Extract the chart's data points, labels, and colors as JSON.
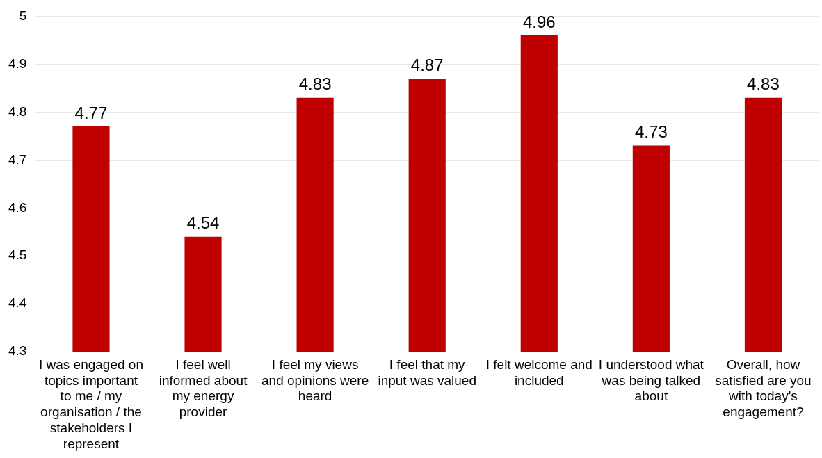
{
  "chart_data": {
    "type": "bar",
    "categories": [
      "I was engaged on topics important to me / my organisation / the stakeholders I represent",
      "I feel well informed about my energy provider",
      "I feel my views and opinions were heard",
      "I feel that my input was valued",
      "I felt welcome and included",
      "I understood what was being talked about",
      "Overall, how satisfied are you with today's engagement?"
    ],
    "values": [
      4.77,
      4.54,
      4.83,
      4.87,
      4.96,
      4.73,
      4.83
    ],
    "color": "#c00000",
    "ylim": [
      4.3,
      5
    ],
    "yticks": [
      4.3,
      4.4,
      4.5,
      4.6,
      4.7,
      4.8,
      4.9,
      5
    ],
    "grid": "y",
    "data_labels": true
  }
}
